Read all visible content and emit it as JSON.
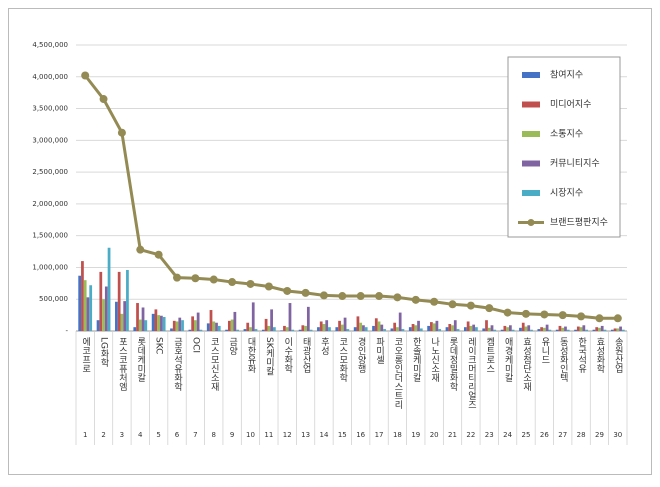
{
  "chart_data": {
    "type": "bar_line",
    "categories": [
      "에코프로",
      "LG화학",
      "포스코퓨처엠",
      "롯데케미칼",
      "SKC",
      "금호석유화학",
      "OCI",
      "코스모신소재",
      "금양",
      "대한유화",
      "SK케미칼",
      "이수화학",
      "태광산업",
      "후성",
      "코스모화학",
      "경인양행",
      "파미셀",
      "코오롱인더스트리",
      "한솔케미칼",
      "나노신소재",
      "롯데정밀화학",
      "레이크머티리얼즈",
      "켐트로스",
      "애경케미칼",
      "효성첨단소재",
      "유니드",
      "동성화인텍",
      "한국석유",
      "효성화학",
      "송원산업"
    ],
    "ranks": [
      1,
      2,
      3,
      4,
      5,
      6,
      7,
      8,
      9,
      10,
      11,
      12,
      13,
      14,
      15,
      16,
      17,
      18,
      19,
      20,
      21,
      22,
      23,
      24,
      25,
      26,
      27,
      28,
      29,
      30
    ],
    "series": [
      {
        "name": "참여지수",
        "type": "bar",
        "color": "#4472c4",
        "values": [
          870000,
          170000,
          460000,
          60000,
          270000,
          40000,
          20000,
          120000,
          20000,
          30000,
          20000,
          10000,
          20000,
          60000,
          60000,
          60000,
          80000,
          40000,
          60000,
          80000,
          60000,
          60000,
          40000,
          20000,
          50000,
          30000,
          20000,
          20000,
          20000,
          20000
        ]
      },
      {
        "name": "미디어지수",
        "type": "bar",
        "color": "#c0504d",
        "values": [
          1100000,
          930000,
          930000,
          440000,
          340000,
          160000,
          230000,
          330000,
          160000,
          130000,
          190000,
          80000,
          90000,
          150000,
          160000,
          230000,
          200000,
          130000,
          110000,
          140000,
          110000,
          150000,
          170000,
          80000,
          130000,
          60000,
          80000,
          70000,
          60000,
          40000
        ]
      },
      {
        "name": "소통지수",
        "type": "bar",
        "color": "#9bbb59",
        "values": [
          800000,
          500000,
          270000,
          180000,
          250000,
          150000,
          170000,
          150000,
          180000,
          60000,
          80000,
          60000,
          80000,
          110000,
          100000,
          130000,
          150000,
          60000,
          90000,
          120000,
          90000,
          80000,
          50000,
          60000,
          70000,
          50000,
          50000,
          60000,
          50000,
          40000
        ]
      },
      {
        "name": "커뮤니티지수",
        "type": "bar",
        "color": "#8064a2",
        "values": [
          530000,
          700000,
          470000,
          370000,
          240000,
          210000,
          290000,
          130000,
          300000,
          450000,
          340000,
          440000,
          380000,
          170000,
          210000,
          90000,
          100000,
          290000,
          160000,
          160000,
          170000,
          100000,
          90000,
          90000,
          90000,
          100000,
          70000,
          90000,
          80000,
          70000
        ]
      },
      {
        "name": "시장지수",
        "type": "bar",
        "color": "#4bacc6",
        "values": [
          720000,
          1310000,
          960000,
          170000,
          220000,
          170000,
          20000,
          80000,
          20000,
          30000,
          60000,
          20000,
          20000,
          60000,
          30000,
          60000,
          30000,
          30000,
          40000,
          30000,
          30000,
          60000,
          20000,
          20000,
          20000,
          20000,
          20000,
          20000,
          20000,
          20000
        ]
      },
      {
        "name": "브랜드평판지수",
        "type": "line",
        "color": "#948a54",
        "values": [
          4020000,
          3650000,
          3120000,
          1280000,
          1200000,
          840000,
          830000,
          810000,
          770000,
          740000,
          700000,
          630000,
          600000,
          560000,
          550000,
          550000,
          550000,
          530000,
          490000,
          460000,
          420000,
          400000,
          360000,
          290000,
          270000,
          260000,
          250000,
          230000,
          200000,
          200000
        ]
      }
    ],
    "ylim": [
      0,
      4500000
    ],
    "yticks": [
      {
        "value": 0,
        "label": "-"
      },
      {
        "value": 500000,
        "label": "500,000"
      },
      {
        "value": 1000000,
        "label": "1,000,000"
      },
      {
        "value": 1500000,
        "label": "1,500,000"
      },
      {
        "value": 2000000,
        "label": "2,000,000"
      },
      {
        "value": 2500000,
        "label": "2,500,000"
      },
      {
        "value": 3000000,
        "label": "3,000,000"
      },
      {
        "value": 3500000,
        "label": "3,500,000"
      },
      {
        "value": 4000000,
        "label": "4,000,000"
      },
      {
        "value": 4500000,
        "label": "4,500,000"
      }
    ],
    "grid": true,
    "legend": "upper right"
  }
}
